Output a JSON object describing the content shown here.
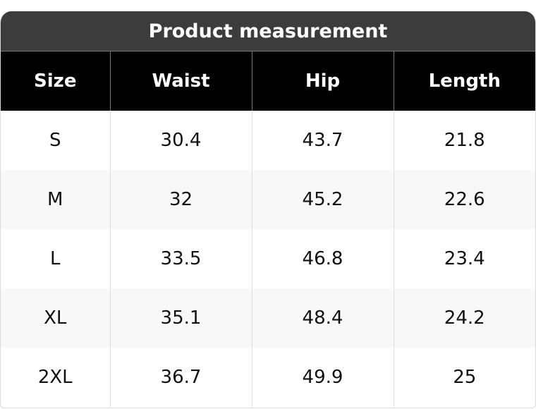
{
  "title": "Product measurement",
  "columns": [
    "Size",
    "Waist",
    "Hip",
    "Length"
  ],
  "rows": [
    [
      "S",
      "30.4",
      "43.7",
      "21.8"
    ],
    [
      "M",
      "32",
      "45.2",
      "22.6"
    ],
    [
      "L",
      "33.5",
      "46.8",
      "23.4"
    ],
    [
      "XL",
      "35.1",
      "48.4",
      "24.2"
    ],
    [
      "2XL",
      "36.7",
      "49.9",
      "25"
    ]
  ]
}
